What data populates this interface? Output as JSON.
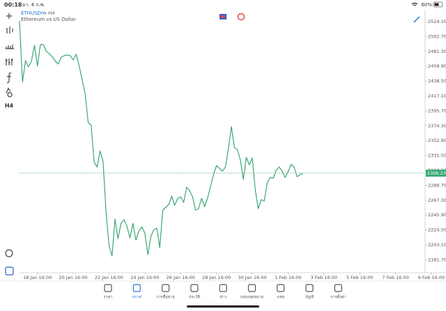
{
  "status_bar": {
    "time": "00:18",
    "date": "อา. 4 ก.พ.",
    "battery": "60%"
  },
  "symbol": {
    "name": "ETHUSDm",
    "timeframe": "H4",
    "description": "Ethereum vs US Dollar"
  },
  "chart_data": {
    "type": "line",
    "series": [
      {
        "name": "ETHUSDm",
        "color": "#3aa876",
        "values": [
          2525.1,
          2437.1,
          2468.1,
          2459.1,
          2467.1,
          2490.1,
          2460.1,
          2491.1,
          2491.1,
          2481.1,
          2478.1,
          2473.1,
          2467.1,
          2463.1,
          2473.1,
          2475.1,
          2476.1,
          2475.1,
          2469.1,
          2477.1,
          2460.1,
          2440.1,
          2420.1,
          2379.1,
          2375.1,
          2322.1,
          2315.1,
          2338.1,
          2323.1,
          2250.1,
          2202.1,
          2187.1,
          2240.1,
          2212.1,
          2234.1,
          2239.1,
          2230.1,
          2213.1,
          2234.1,
          2210.1,
          2223.1,
          2229.1,
          2220.1,
          2189.1,
          2215.1,
          2225.1,
          2227.1,
          2199.1,
          2253.1,
          2257.1,
          2261.1,
          2273.1,
          2260.1,
          2270.1,
          2272.1,
          2264.1,
          2286.1,
          2281.1,
          2272.1,
          2253.1,
          2255.1,
          2270.1,
          2258.1,
          2270.1,
          2287.1,
          2304.1,
          2317.1,
          2313.1,
          2309.1,
          2315.1,
          2342.1,
          2373.1,
          2343.1,
          2340.1,
          2325.1,
          2297.1,
          2329.1,
          2318.1,
          2328.1,
          2282.1,
          2255.1,
          2268.1,
          2266.1,
          2292.1,
          2300.1,
          2299.1,
          2310.1,
          2315.1,
          2309.1,
          2300.1,
          2308.1,
          2319.1,
          2315.1,
          2301.1,
          2304.1,
          2306.1
        ]
      }
    ],
    "last_price": 2306.23,
    "ylim": [
      2163.1,
      2541.1
    ],
    "yticks": [
      {
        "value": 2181.7,
        "label": "2181.70"
      },
      {
        "value": 2203.1,
        "label": "2203.10"
      },
      {
        "value": 2224.5,
        "label": "2224.50"
      },
      {
        "value": 2245.9,
        "label": "2245.90"
      },
      {
        "value": 2267.3,
        "label": "2267.30"
      },
      {
        "value": 2288.7,
        "label": "2288.70"
      },
      {
        "value": 2310.1,
        "label": "2310.10"
      },
      {
        "value": 2331.5,
        "label": "2331.50"
      },
      {
        "value": 2352.9,
        "label": "2352.90"
      },
      {
        "value": 2374.3,
        "label": "2374.30"
      },
      {
        "value": 2395.7,
        "label": "2395.70"
      },
      {
        "value": 2417.1,
        "label": "2417.10"
      },
      {
        "value": 2438.5,
        "label": "2438.50"
      },
      {
        "value": 2459.9,
        "label": "2459.90"
      },
      {
        "value": 2481.3,
        "label": "2481.30"
      },
      {
        "value": 2502.7,
        "label": "2502.70"
      },
      {
        "value": 2524.1,
        "label": "2524.10"
      }
    ],
    "xlim": [
      0,
      138
    ],
    "xticks": [
      {
        "value": 6,
        "label": "18 Jan 16:00"
      },
      {
        "value": 18,
        "label": "20 Jan 16:00"
      },
      {
        "value": 30,
        "label": "22 Jan 16:00"
      },
      {
        "value": 42,
        "label": "24 Jan 16:00"
      },
      {
        "value": 54,
        "label": "26 Jan 16:00"
      },
      {
        "value": 66,
        "label": "28 Jan 16:00"
      },
      {
        "value": 78,
        "label": "30 Jan 16:00"
      },
      {
        "value": 90,
        "label": "1 Feb 16:00"
      },
      {
        "value": 102,
        "label": "3 Feb 16:00"
      },
      {
        "value": 114,
        "label": "5 Feb 16:00"
      },
      {
        "value": 126,
        "label": "7 Feb 16:00"
      },
      {
        "value": 138,
        "label": "9 Feb 16:00"
      }
    ]
  },
  "tabs": [
    {
      "label": "ราคา",
      "active": false
    },
    {
      "label": "กราฟ",
      "active": true
    },
    {
      "label": "การซื้อขาย",
      "active": false
    },
    {
      "label": "ประวัติ",
      "active": false
    },
    {
      "label": "ข่าว",
      "active": false
    },
    {
      "label": "กล่องจดหมาย",
      "active": false
    },
    {
      "label": "แชท",
      "active": false
    },
    {
      "label": "บัญชี",
      "active": false
    },
    {
      "label": "การตั้งค่า",
      "active": false
    }
  ]
}
